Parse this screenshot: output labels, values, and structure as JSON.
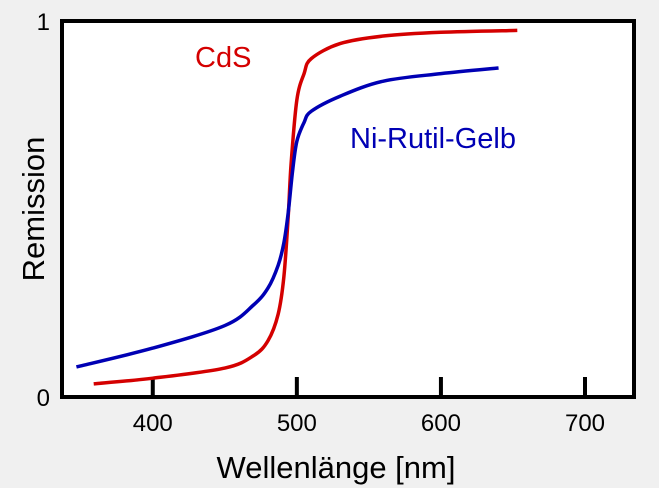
{
  "chart_data": {
    "type": "line",
    "title": "",
    "xlabel": "Wellenlänge [nm]",
    "ylabel": "Remission",
    "xlim": [
      337,
      734
    ],
    "ylim": [
      0,
      1
    ],
    "xticks": [
      400,
      500,
      600,
      700
    ],
    "xtick_labels": [
      "400",
      "500",
      "600",
      "700"
    ],
    "yticks": [
      0,
      1
    ],
    "ytick_labels": [
      "0",
      "1"
    ],
    "grid": false,
    "legend": "inline labels",
    "series": [
      {
        "name": "CdS",
        "color": "#d40000",
        "x": [
          359,
          400,
          450,
          470,
          480,
          487,
          491,
          494,
          496,
          500,
          505,
          510,
          530,
          560,
          600,
          653
        ],
        "y": [
          0.035,
          0.05,
          0.077,
          0.11,
          0.15,
          0.22,
          0.32,
          0.48,
          0.62,
          0.79,
          0.86,
          0.9,
          0.94,
          0.96,
          0.97,
          0.975
        ]
      },
      {
        "name": "Ni-Rutil-Gelb",
        "color": "#0000b4",
        "x": [
          347,
          400,
          450,
          470,
          480,
          487,
          491,
          494,
          497,
          500,
          505,
          510,
          530,
          560,
          600,
          640
        ],
        "y": [
          0.08,
          0.13,
          0.19,
          0.245,
          0.29,
          0.35,
          0.41,
          0.49,
          0.6,
          0.68,
          0.73,
          0.76,
          0.8,
          0.84,
          0.86,
          0.875
        ]
      }
    ]
  }
}
